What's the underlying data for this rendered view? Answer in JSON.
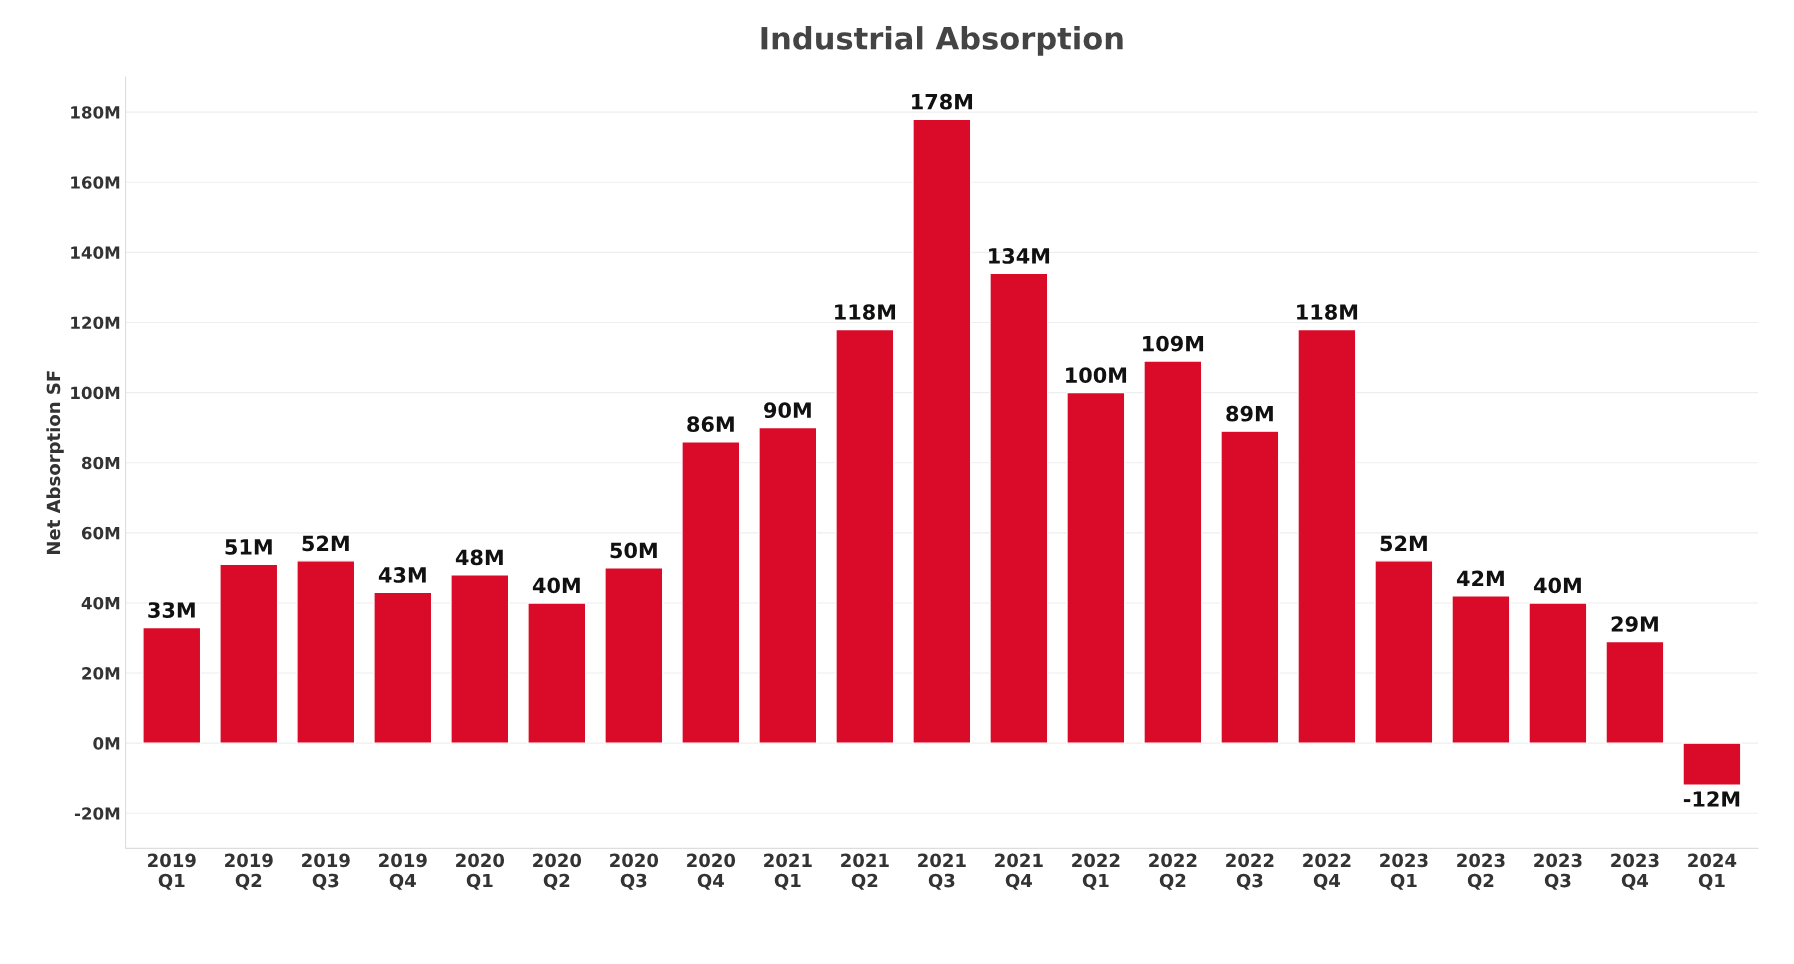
{
  "chart_data": {
    "type": "bar",
    "title": "Industrial Absorption",
    "ylabel": "Net Absorption SF",
    "categories": [
      "2019\nQ1",
      "2019\nQ2",
      "2019\nQ3",
      "2019\nQ4",
      "2020\nQ1",
      "2020\nQ2",
      "2020\nQ3",
      "2020\nQ4",
      "2021\nQ1",
      "2021\nQ2",
      "2021\nQ3",
      "2021\nQ4",
      "2022\nQ1",
      "2022\nQ2",
      "2022\nQ3",
      "2022\nQ4",
      "2023\nQ1",
      "2023\nQ2",
      "2023\nQ3",
      "2023\nQ4",
      "2024\nQ1"
    ],
    "values": [
      33,
      51,
      52,
      43,
      48,
      40,
      50,
      86,
      90,
      118,
      178,
      134,
      100,
      109,
      89,
      118,
      52,
      42,
      40,
      29,
      -12
    ],
    "value_labels": [
      "33M",
      "51M",
      "52M",
      "43M",
      "48M",
      "40M",
      "50M",
      "86M",
      "90M",
      "118M",
      "178M",
      "134M",
      "100M",
      "109M",
      "89M",
      "118M",
      "52M",
      "42M",
      "40M",
      "29M",
      "-12M"
    ],
    "color": "#d90b28",
    "ylim": [
      -30,
      190
    ],
    "yticks": [
      {
        "value": -20,
        "label": "-20M"
      },
      {
        "value": 0,
        "label": "0M"
      },
      {
        "value": 20,
        "label": "20M"
      },
      {
        "value": 40,
        "label": "40M"
      },
      {
        "value": 60,
        "label": "60M"
      },
      {
        "value": 80,
        "label": "80M"
      },
      {
        "value": 100,
        "label": "100M"
      },
      {
        "value": 120,
        "label": "120M"
      },
      {
        "value": 140,
        "label": "140M"
      },
      {
        "value": 160,
        "label": "160M"
      },
      {
        "value": 180,
        "label": "180M"
      }
    ],
    "grid": "y",
    "legend": false
  }
}
